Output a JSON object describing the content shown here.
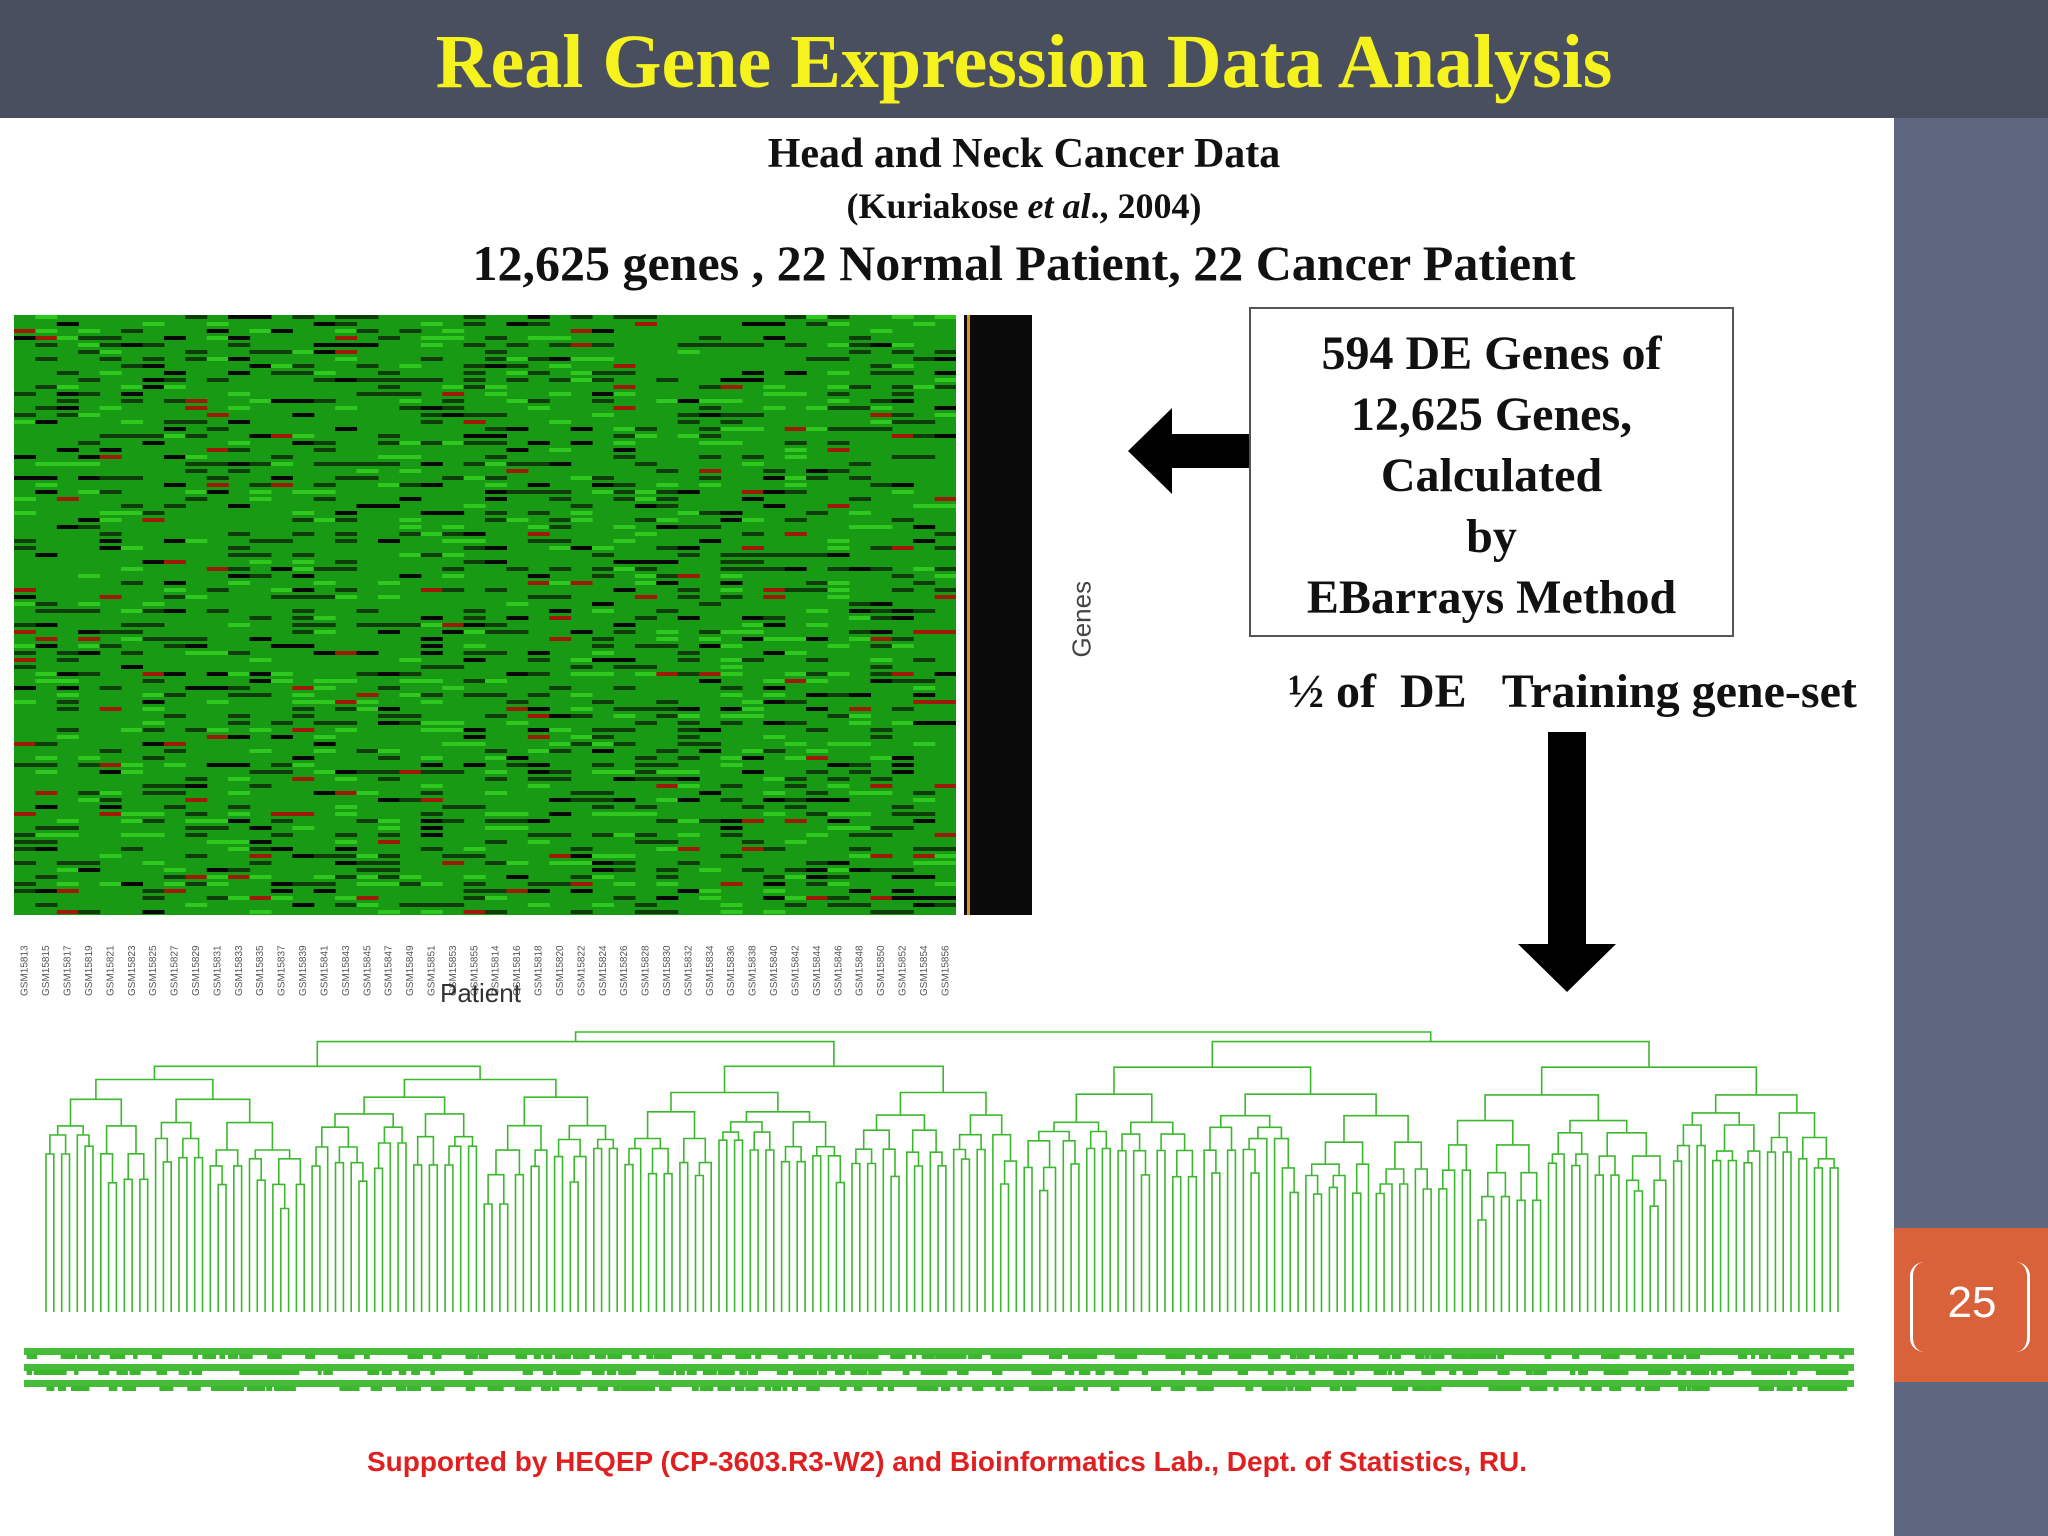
{
  "slide": {
    "title": "Real Gene Expression Data Analysis",
    "subtitle": "Head and Neck Cancer Data",
    "citation_author": "(Kuriakose ",
    "citation_etal": "et al",
    "citation_year": "., 2004)",
    "data_line": "12,625 genes , 22 Normal Patient, 22 Cancer Patient",
    "slide_number": "25"
  },
  "heatmap": {
    "y_label": "Genes",
    "x_label": "Patient",
    "samples": [
      "GSM15813",
      "GSM15815",
      "GSM15817",
      "GSM15819",
      "GSM15821",
      "GSM15823",
      "GSM15825",
      "GSM15827",
      "GSM15829",
      "GSM15831",
      "GSM15833",
      "GSM15835",
      "GSM15837",
      "GSM15839",
      "GSM15841",
      "GSM15843",
      "GSM15845",
      "GSM15847",
      "GSM15849",
      "GSM15851",
      "GSM15853",
      "GSM15855",
      "GSM15814",
      "GSM15816",
      "GSM15818",
      "GSM15820",
      "GSM15822",
      "GSM15824",
      "GSM15826",
      "GSM15828",
      "GSM15830",
      "GSM15832",
      "GSM15834",
      "GSM15836",
      "GSM15838",
      "GSM15840",
      "GSM15842",
      "GSM15844",
      "GSM15846",
      "GSM15848",
      "GSM15850",
      "GSM15852",
      "GSM15854",
      "GSM15856"
    ],
    "colors": {
      "base": "#199a14",
      "dark": "#0e3d0a",
      "black": "#050805",
      "red": "#a01a0a",
      "bright": "#2fc81f"
    }
  },
  "de_box": {
    "lines": [
      "594 DE Genes of",
      "12,625 Genes,",
      "Calculated",
      "by",
      "EBarrays  Method"
    ]
  },
  "training_text": "½ of  DE   Training gene-set",
  "dendrogram": {
    "color": "#3cb82e"
  },
  "footer": "Supported by HEQEP (CP-3603.R3-W2) and Bioinformatics Lab., Dept. of Statistics, RU.",
  "theme": {
    "header_bg": "#4a4f60",
    "title_color": "#f6f21e",
    "side_bar": "#5f6680",
    "accent": "#d9623b",
    "footer_color": "#e02020"
  }
}
